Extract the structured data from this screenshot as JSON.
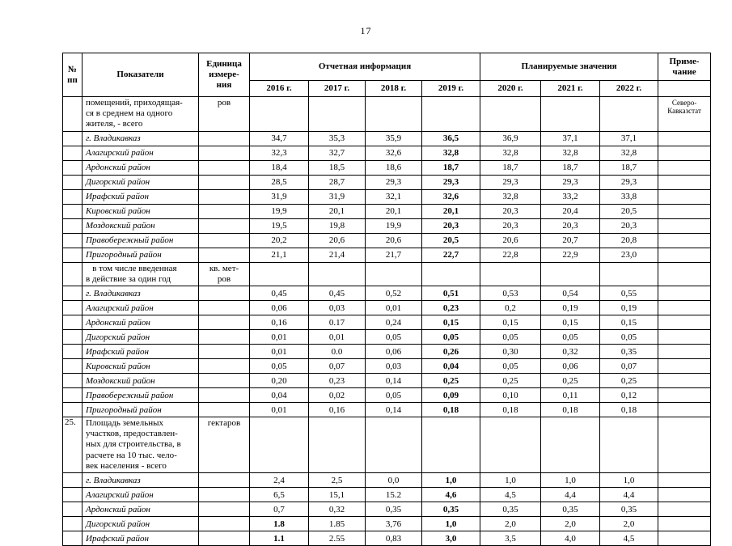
{
  "page": {
    "number": "17"
  },
  "table": {
    "header": {
      "col_num": "№\nпп",
      "col_indicators": "Показатели",
      "col_unit": "Единица\nизмере-\nния",
      "group_report": "Отчетная информация",
      "group_plan": "Планируемые значения",
      "col_note": "Приме-\nчание",
      "years": [
        "2016 г.",
        "2017 г.",
        "2018 г.",
        "2019 г.",
        "2020 г.",
        "2021 г.",
        "2022 г."
      ]
    },
    "rows": [
      {
        "type": "indicator",
        "num": "",
        "text": "помещений, приходящая-\nся в среднем на одного\nжителя, - всего",
        "unit": "ров",
        "values": [
          "",
          "",
          "",
          "",
          "",
          "",
          ""
        ],
        "bold": [],
        "note": "Северо-\nКавказстат"
      },
      {
        "type": "district",
        "num": "",
        "text": "г. Владикавказ",
        "unit": "",
        "values": [
          "34,7",
          "35,3",
          "35,9",
          "36,5",
          "36,9",
          "37,1",
          "37,1"
        ],
        "bold": [
          3
        ],
        "note": ""
      },
      {
        "type": "district",
        "num": "",
        "text": "Алагирский район",
        "unit": "",
        "values": [
          "32,3",
          "32,7",
          "32,6",
          "32,8",
          "32,8",
          "32,8",
          "32,8"
        ],
        "bold": [
          3
        ],
        "note": ""
      },
      {
        "type": "district",
        "num": "",
        "text": "Ардонский район",
        "unit": "",
        "values": [
          "18,4",
          "18,5",
          "18,6",
          "18,7",
          "18,7",
          "18,7",
          "18,7"
        ],
        "bold": [
          3
        ],
        "note": ""
      },
      {
        "type": "district",
        "num": "",
        "text": "Дигорский район",
        "unit": "",
        "values": [
          "28,5",
          "28,7",
          "29,3",
          "29,3",
          "29,3",
          "29,3",
          "29,3"
        ],
        "bold": [
          3
        ],
        "note": ""
      },
      {
        "type": "district",
        "num": "",
        "text": "Ирафский район",
        "unit": "",
        "values": [
          "31,9",
          "31,9",
          "32,1",
          "32,6",
          "32,8",
          "33,2",
          "33,8"
        ],
        "bold": [
          3
        ],
        "note": ""
      },
      {
        "type": "district",
        "num": "",
        "text": "Кировский район",
        "unit": "",
        "values": [
          "19,9",
          "20,1",
          "20,1",
          "20,1",
          "20,3",
          "20,4",
          "20,5"
        ],
        "bold": [
          3
        ],
        "note": ""
      },
      {
        "type": "district",
        "num": "",
        "text": "Моздокский район",
        "unit": "",
        "values": [
          "19,5",
          "19,8",
          "19,9",
          "20,3",
          "20,3",
          "20,3",
          "20,3"
        ],
        "bold": [
          3
        ],
        "note": ""
      },
      {
        "type": "district",
        "num": "",
        "text": "Правобережный район",
        "unit": "",
        "values": [
          "20,2",
          "20,6",
          "20,6",
          "20,5",
          "20,6",
          "20,7",
          "20,8"
        ],
        "bold": [
          3
        ],
        "note": ""
      },
      {
        "type": "district",
        "num": "",
        "text": "Пригородный район",
        "unit": "",
        "values": [
          "21,1",
          "21,4",
          "21,7",
          "22,7",
          "22,8",
          "22,9",
          "23,0"
        ],
        "bold": [
          3
        ],
        "note": ""
      },
      {
        "type": "indicator",
        "num": "",
        "text": "   в том числе введенная\nв действие за один год",
        "unit": "кв. мет-\nров",
        "values": [
          "",
          "",
          "",
          "",
          "",
          "",
          ""
        ],
        "bold": [],
        "note": ""
      },
      {
        "type": "district",
        "num": "",
        "text": "г. Владикавказ",
        "unit": "",
        "values": [
          "0,45",
          "0,45",
          "0,52",
          "0,51",
          "0,53",
          "0,54",
          "0,55"
        ],
        "bold": [
          3
        ],
        "note": ""
      },
      {
        "type": "district",
        "num": "",
        "text": "Алагирский район",
        "unit": "",
        "values": [
          "0,06",
          "0,03",
          "0,01",
          "0,23",
          "0,2",
          "0,19",
          "0,19"
        ],
        "bold": [
          3
        ],
        "note": ""
      },
      {
        "type": "district",
        "num": "",
        "text": "Ардонский район",
        "unit": "",
        "values": [
          "0,16",
          "0.17",
          "0,24",
          "0,15",
          "0,15",
          "0,15",
          "0,15"
        ],
        "bold": [
          3
        ],
        "note": ""
      },
      {
        "type": "district",
        "num": "",
        "text": "Дигорский район",
        "unit": "",
        "values": [
          "0,01",
          "0,01",
          "0,05",
          "0,05",
          "0,05",
          "0,05",
          "0,05"
        ],
        "bold": [
          3
        ],
        "note": ""
      },
      {
        "type": "district",
        "num": "",
        "text": "Ирафский район",
        "unit": "",
        "values": [
          "0,01",
          "0.0",
          "0,06",
          "0,26",
          "0,30",
          "0,32",
          "0,35"
        ],
        "bold": [
          3
        ],
        "note": ""
      },
      {
        "type": "district",
        "num": "",
        "text": "Кировский район",
        "unit": "",
        "values": [
          "0,05",
          "0,07",
          "0,03",
          "0,04",
          "0,05",
          "0,06",
          "0,07"
        ],
        "bold": [
          3
        ],
        "note": ""
      },
      {
        "type": "district",
        "num": "",
        "text": "Моздокский район",
        "unit": "",
        "values": [
          "0,20",
          "0,23",
          "0,14",
          "0,25",
          "0,25",
          "0,25",
          "0,25"
        ],
        "bold": [
          3
        ],
        "note": ""
      },
      {
        "type": "district",
        "num": "",
        "text": "Правобережный район",
        "unit": "",
        "values": [
          "0,04",
          "0,02",
          "0,05",
          "0,09",
          "0,10",
          "0,11",
          "0,12"
        ],
        "bold": [
          3
        ],
        "note": ""
      },
      {
        "type": "district",
        "num": "",
        "text": "Пригородный район",
        "unit": "",
        "values": [
          "0,01",
          "0,16",
          "0,14",
          "0,18",
          "0,18",
          "0,18",
          "0,18"
        ],
        "bold": [
          3
        ],
        "note": ""
      },
      {
        "type": "indicator",
        "num": "25.",
        "text": "Площадь земельных\nучастков, предоставлен-\nных для строительства, в\nрасчете на 10 тыс. чело-\nвек населения - всего",
        "unit": "гектаров",
        "values": [
          "",
          "",
          "",
          "",
          "",
          "",
          ""
        ],
        "bold": [],
        "note": ""
      },
      {
        "type": "district",
        "num": "",
        "text": "г. Владикавказ",
        "unit": "",
        "values": [
          "2,4",
          "2,5",
          "0,0",
          "1,0",
          "1,0",
          "1,0",
          "1,0"
        ],
        "bold": [
          3
        ],
        "note": ""
      },
      {
        "type": "district",
        "num": "",
        "text": "Алагирский район",
        "unit": "",
        "values": [
          "6,5",
          "15,1",
          "15.2",
          "4,6",
          "4,5",
          "4,4",
          "4,4"
        ],
        "bold": [
          3
        ],
        "note": ""
      },
      {
        "type": "district",
        "num": "",
        "text": "Ардонский район",
        "unit": "",
        "values": [
          "0,7",
          "0,32",
          "0,35",
          "0,35",
          "0,35",
          "0,35",
          "0,35"
        ],
        "bold": [
          3
        ],
        "note": ""
      },
      {
        "type": "district",
        "num": "",
        "text": "Дигорский район",
        "unit": "",
        "values": [
          "1.8",
          "1.85",
          "3,76",
          "1,0",
          "2,0",
          "2,0",
          "2,0"
        ],
        "bold": [
          0,
          3
        ],
        "note": ""
      },
      {
        "type": "district",
        "num": "",
        "text": "Ирафский район",
        "unit": "",
        "values": [
          "1.1",
          "2.55",
          "0,83",
          "3,0",
          "3,5",
          "4,0",
          "4,5"
        ],
        "bold": [
          0,
          3
        ],
        "note": ""
      }
    ]
  }
}
